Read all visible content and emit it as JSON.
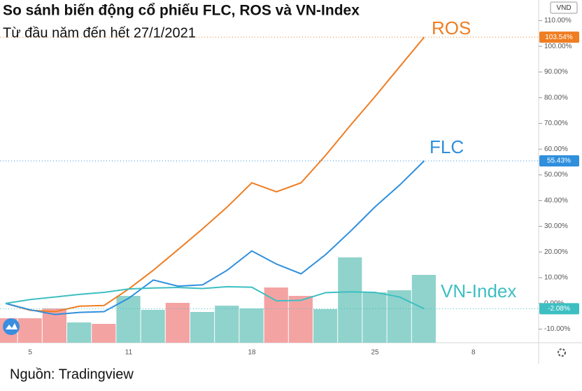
{
  "chart_data": {
    "type": "line",
    "title": "So sánh biến động cổ phiếu FLC, ROS và VN-Index",
    "subtitle": "Từ đầu năm đến hết 27/1/2021",
    "source": "Nguồn: Tradingview",
    "currency": "VND",
    "categories": [
      null,
      "5",
      null,
      null,
      null,
      "11",
      null,
      null,
      null,
      null,
      "18",
      null,
      null,
      null,
      null,
      "25",
      null,
      null,
      null,
      "8"
    ],
    "series": [
      {
        "name": "ROS",
        "color": "#ef7d22",
        "last_label": "103.54%",
        "values": [
          0,
          -2.7,
          -3.2,
          -1.1,
          -0.8,
          5.6,
          12.9,
          20.9,
          29,
          37.5,
          46.9,
          43.4,
          46.9,
          57.6,
          69.2,
          80.4,
          92,
          103.54,
          null,
          null
        ]
      },
      {
        "name": "FLC",
        "color": "#2f8fdd",
        "last_label": "55.43%",
        "values": [
          0,
          -2.5,
          -4.3,
          -3.5,
          -3.2,
          2.0,
          9.1,
          6.7,
          7.2,
          12.9,
          20.4,
          15.3,
          11.5,
          19,
          28,
          37.5,
          46,
          55.43,
          null,
          null
        ]
      },
      {
        "name": "VN-Index",
        "color": "#3dbfc2",
        "last_label": "-2.08%",
        "values": [
          0,
          1.5,
          2.5,
          3.5,
          4.3,
          5.6,
          6,
          6.2,
          5.8,
          6.5,
          6.3,
          1.0,
          1.2,
          4.2,
          4.5,
          4.3,
          2.5,
          -2.08,
          null,
          null
        ]
      }
    ],
    "volume": {
      "values": [
        35,
        35,
        49,
        29,
        27,
        67,
        47,
        57,
        44,
        53,
        49,
        79,
        67,
        48,
        122,
        72,
        75,
        97,
        null,
        null
      ],
      "colors": [
        "#f4a3a3",
        "#f4a3a3",
        "#f4a3a3",
        "#8fd3cc",
        "#f4a3a3",
        "#8fd3cc",
        "#8fd3cc",
        "#f4a3a3",
        "#8fd3cc",
        "#8fd3cc",
        "#8fd3cc",
        "#f4a3a3",
        "#f4a3a3",
        "#8fd3cc",
        "#8fd3cc",
        "#8fd3cc",
        "#8fd3cc",
        "#8fd3cc",
        null,
        null
      ]
    },
    "ylim": [
      -15.3,
      118
    ],
    "yticks": [
      {
        "value": -10,
        "label": "-10.00%"
      },
      {
        "value": 0,
        "label": "0.00%"
      },
      {
        "value": 10,
        "label": "10.00%"
      },
      {
        "value": 20,
        "label": "20.00%"
      },
      {
        "value": 30,
        "label": "30.00%"
      },
      {
        "value": 40,
        "label": "40.00%"
      },
      {
        "value": 50,
        "label": "50.00%"
      },
      {
        "value": 60,
        "label": "60.00%"
      },
      {
        "value": 70,
        "label": "70.00%"
      },
      {
        "value": 80,
        "label": "80.00%"
      },
      {
        "value": 90,
        "label": "90.00%"
      },
      {
        "value": 100,
        "label": "100.00%"
      },
      {
        "value": 110,
        "label": "110.00%"
      }
    ],
    "grid": false
  }
}
